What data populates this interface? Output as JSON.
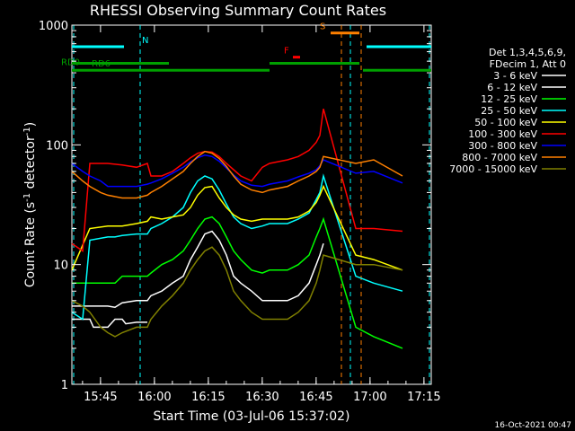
{
  "chart_data": {
    "type": "line",
    "title": "RHESSI Observing Summary Count Rates",
    "xlabel": "Start Time (03-Jul-06 15:37:02)",
    "ylabel_main": "Count Rate (s",
    "ylabel_sup1": "-1",
    "ylabel_mid": " detector",
    "ylabel_sup2": "-1",
    "ylabel_end": ")",
    "yscale": "log",
    "ylim": [
      1,
      1000
    ],
    "xlim_minutes": [
      0,
      100
    ],
    "x_unit": "minutes since 15:37:02",
    "x_ticks": [
      {
        "label": "15:45",
        "t": 7.97
      },
      {
        "label": "16:00",
        "t": 22.97
      },
      {
        "label": "16:15",
        "t": 37.97
      },
      {
        "label": "16:30",
        "t": 52.97
      },
      {
        "label": "16:45",
        "t": 67.97
      },
      {
        "label": "17:00",
        "t": 82.97
      },
      {
        "label": "17:15",
        "t": 97.97
      }
    ],
    "y_ticks": [
      {
        "label": "1",
        "v": 1
      },
      {
        "label": "10",
        "v": 10
      },
      {
        "label": "100",
        "v": 100
      },
      {
        "label": "1000",
        "v": 1000
      }
    ],
    "legend_header": [
      "Det 1,3,4,5,6,9,",
      "FDecim 1, Att 0"
    ],
    "series": [
      {
        "name": "3 - 6 keV",
        "color": "#ffffff",
        "values": [
          [
            0,
            4.5
          ],
          [
            5,
            4.5
          ],
          [
            10,
            4.5
          ],
          [
            12,
            4.4
          ],
          [
            14,
            4.8
          ],
          [
            18,
            5
          ],
          [
            21,
            5
          ],
          [
            22,
            5.5
          ],
          [
            25,
            6
          ],
          [
            28,
            7
          ],
          [
            31,
            8
          ],
          [
            33,
            11
          ],
          [
            35,
            14
          ],
          [
            37,
            18
          ],
          [
            39,
            19
          ],
          [
            41,
            16
          ],
          [
            43,
            12
          ],
          [
            45,
            8
          ],
          [
            47,
            7
          ],
          [
            50,
            6
          ],
          [
            53,
            5
          ],
          [
            55,
            5
          ],
          [
            60,
            5
          ],
          [
            63,
            5.5
          ],
          [
            66,
            7
          ],
          [
            68,
            10
          ],
          [
            69,
            12
          ],
          [
            70,
            15
          ]
        ]
      },
      {
        "name": "6 - 12 keV",
        "color": "#ffffff",
        "values": [
          [
            0,
            3.5
          ],
          [
            3,
            3.5
          ],
          [
            5,
            3.5
          ],
          [
            6,
            3
          ],
          [
            10,
            3
          ],
          [
            12,
            3.5
          ],
          [
            14,
            3.5
          ],
          [
            15,
            3.2
          ],
          [
            18,
            3.3
          ],
          [
            21,
            3.3
          ]
        ]
      },
      {
        "name": "12 - 25 keV",
        "color": "#00ff00",
        "values": [
          [
            0,
            7
          ],
          [
            5,
            7
          ],
          [
            10,
            7
          ],
          [
            12,
            7
          ],
          [
            14,
            8
          ],
          [
            18,
            8
          ],
          [
            21,
            8
          ],
          [
            22,
            8.5
          ],
          [
            25,
            10
          ],
          [
            28,
            11
          ],
          [
            31,
            13
          ],
          [
            33,
            16
          ],
          [
            35,
            20
          ],
          [
            37,
            24
          ],
          [
            39,
            25
          ],
          [
            41,
            22
          ],
          [
            43,
            17
          ],
          [
            45,
            13
          ],
          [
            47,
            11
          ],
          [
            50,
            9
          ],
          [
            53,
            8.5
          ],
          [
            55,
            9
          ],
          [
            60,
            9
          ],
          [
            63,
            10
          ],
          [
            66,
            12
          ],
          [
            68,
            17
          ],
          [
            69,
            20
          ],
          [
            70,
            24
          ],
          [
            79,
            3
          ],
          [
            84,
            2.5
          ],
          [
            92,
            2
          ]
        ]
      },
      {
        "name": "25 - 50 keV",
        "color": "#00ffff",
        "values": [
          [
            0,
            4
          ],
          [
            3,
            3.5
          ],
          [
            5,
            16
          ],
          [
            10,
            17
          ],
          [
            12,
            17
          ],
          [
            14,
            17.5
          ],
          [
            18,
            18
          ],
          [
            21,
            18
          ],
          [
            22,
            20
          ],
          [
            25,
            22
          ],
          [
            28,
            25
          ],
          [
            31,
            30
          ],
          [
            33,
            40
          ],
          [
            35,
            50
          ],
          [
            37,
            55
          ],
          [
            39,
            52
          ],
          [
            41,
            42
          ],
          [
            43,
            32
          ],
          [
            45,
            25
          ],
          [
            47,
            22
          ],
          [
            50,
            20
          ],
          [
            53,
            21
          ],
          [
            55,
            22
          ],
          [
            60,
            22
          ],
          [
            63,
            24
          ],
          [
            66,
            27
          ],
          [
            68,
            35
          ],
          [
            69,
            40
          ],
          [
            70,
            55
          ],
          [
            79,
            8
          ],
          [
            84,
            7
          ],
          [
            92,
            6
          ]
        ]
      },
      {
        "name": "50 - 100 keV",
        "color": "#ffff00",
        "values": [
          [
            0,
            9
          ],
          [
            5,
            20
          ],
          [
            10,
            21
          ],
          [
            14,
            21
          ],
          [
            18,
            22
          ],
          [
            21,
            23
          ],
          [
            22,
            25
          ],
          [
            25,
            24
          ],
          [
            28,
            25
          ],
          [
            31,
            26
          ],
          [
            33,
            30
          ],
          [
            35,
            38
          ],
          [
            37,
            44
          ],
          [
            39,
            45
          ],
          [
            41,
            36
          ],
          [
            43,
            30
          ],
          [
            45,
            26
          ],
          [
            47,
            24
          ],
          [
            50,
            23
          ],
          [
            53,
            24
          ],
          [
            55,
            24
          ],
          [
            60,
            24
          ],
          [
            63,
            25
          ],
          [
            66,
            28
          ],
          [
            68,
            33
          ],
          [
            69,
            38
          ],
          [
            70,
            45
          ],
          [
            79,
            12
          ],
          [
            84,
            11
          ],
          [
            92,
            9
          ]
        ]
      },
      {
        "name": "100 - 300 keV",
        "color": "#ff0000",
        "values": [
          [
            0,
            15
          ],
          [
            3,
            13
          ],
          [
            5,
            70
          ],
          [
            10,
            70
          ],
          [
            14,
            68
          ],
          [
            18,
            65
          ],
          [
            21,
            70
          ],
          [
            22,
            55
          ],
          [
            25,
            55
          ],
          [
            28,
            60
          ],
          [
            31,
            70
          ],
          [
            33,
            78
          ],
          [
            35,
            85
          ],
          [
            37,
            88
          ],
          [
            39,
            87
          ],
          [
            41,
            80
          ],
          [
            43,
            70
          ],
          [
            45,
            62
          ],
          [
            47,
            55
          ],
          [
            50,
            50
          ],
          [
            53,
            65
          ],
          [
            55,
            70
          ],
          [
            60,
            75
          ],
          [
            63,
            80
          ],
          [
            66,
            90
          ],
          [
            68,
            105
          ],
          [
            69,
            120
          ],
          [
            70,
            200
          ],
          [
            79,
            20
          ],
          [
            84,
            20
          ],
          [
            92,
            19
          ]
        ]
      },
      {
        "name": "300 - 800 keV",
        "color": "#0000ff",
        "values": [
          [
            0,
            70
          ],
          [
            3,
            60
          ],
          [
            5,
            55
          ],
          [
            8,
            50
          ],
          [
            10,
            45
          ],
          [
            14,
            45
          ],
          [
            18,
            45
          ],
          [
            21,
            47
          ],
          [
            22,
            48
          ],
          [
            25,
            52
          ],
          [
            28,
            58
          ],
          [
            31,
            65
          ],
          [
            33,
            72
          ],
          [
            35,
            78
          ],
          [
            37,
            82
          ],
          [
            39,
            80
          ],
          [
            41,
            73
          ],
          [
            43,
            64
          ],
          [
            45,
            56
          ],
          [
            47,
            50
          ],
          [
            50,
            46
          ],
          [
            53,
            45
          ],
          [
            55,
            47
          ],
          [
            60,
            50
          ],
          [
            63,
            54
          ],
          [
            66,
            58
          ],
          [
            68,
            62
          ],
          [
            69,
            67
          ],
          [
            70,
            75
          ],
          [
            79,
            58
          ],
          [
            84,
            60
          ],
          [
            92,
            48
          ]
        ]
      },
      {
        "name": "800 - 7000 keV",
        "color": "#ff8000",
        "values": [
          [
            0,
            60
          ],
          [
            3,
            50
          ],
          [
            5,
            45
          ],
          [
            8,
            40
          ],
          [
            10,
            38
          ],
          [
            14,
            36
          ],
          [
            18,
            36
          ],
          [
            21,
            38
          ],
          [
            22,
            40
          ],
          [
            25,
            45
          ],
          [
            28,
            52
          ],
          [
            31,
            60
          ],
          [
            33,
            70
          ],
          [
            35,
            80
          ],
          [
            37,
            88
          ],
          [
            39,
            85
          ],
          [
            41,
            77
          ],
          [
            43,
            66
          ],
          [
            45,
            55
          ],
          [
            47,
            47
          ],
          [
            50,
            42
          ],
          [
            53,
            40
          ],
          [
            55,
            42
          ],
          [
            60,
            45
          ],
          [
            63,
            50
          ],
          [
            66,
            55
          ],
          [
            68,
            60
          ],
          [
            69,
            65
          ],
          [
            70,
            80
          ],
          [
            79,
            70
          ],
          [
            84,
            75
          ],
          [
            92,
            55
          ]
        ]
      },
      {
        "name": "7000 - 15000 keV",
        "color": "#808000",
        "values": [
          [
            0,
            5
          ],
          [
            3,
            4.5
          ],
          [
            5,
            4
          ],
          [
            8,
            3
          ],
          [
            10,
            2.7
          ],
          [
            12,
            2.5
          ],
          [
            14,
            2.7
          ],
          [
            18,
            3
          ],
          [
            21,
            3
          ],
          [
            22,
            3.5
          ],
          [
            25,
            4.5
          ],
          [
            28,
            5.5
          ],
          [
            31,
            7
          ],
          [
            33,
            9
          ],
          [
            35,
            11
          ],
          [
            37,
            13
          ],
          [
            39,
            14
          ],
          [
            41,
            12
          ],
          [
            43,
            9
          ],
          [
            45,
            6
          ],
          [
            47,
            5
          ],
          [
            50,
            4
          ],
          [
            53,
            3.5
          ],
          [
            55,
            3.5
          ],
          [
            60,
            3.5
          ],
          [
            63,
            4
          ],
          [
            66,
            5
          ],
          [
            68,
            7
          ],
          [
            69,
            9
          ],
          [
            70,
            12
          ],
          [
            79,
            10
          ],
          [
            84,
            10
          ],
          [
            92,
            9
          ]
        ]
      }
    ],
    "flags": [
      {
        "label": "N",
        "color": "#00ffff",
        "segments": [
          [
            0,
            14.5
          ],
          [
            82,
            100
          ]
        ],
        "level": 660
      },
      {
        "label": "S",
        "color": "#ff8000",
        "segments": [
          [
            72,
            80
          ]
        ],
        "level": 860
      },
      {
        "label": "F",
        "color": "#ff0000",
        "segments": [
          [
            61.5,
            63.5
          ]
        ],
        "level": 540
      },
      {
        "label": "RD0",
        "color": "#00a000",
        "segments": [
          [
            0,
            27
          ],
          [
            55,
            80
          ]
        ],
        "level": 480
      },
      {
        "label": "RD6",
        "color": "#00a000",
        "segments": [
          [
            0,
            55
          ],
          [
            81,
            100
          ]
        ],
        "level": 420
      }
    ],
    "gaps": [
      {
        "color": "#00ffff",
        "t": 0.5
      },
      {
        "color": "#00ffff",
        "t": 19
      },
      {
        "color": "#ff8000",
        "t": 75
      },
      {
        "color": "#00ffff",
        "t": 77.5
      },
      {
        "color": "#ff8000",
        "t": 80.5
      },
      {
        "color": "#00ffff",
        "t": 99.5
      }
    ],
    "timestamp": "16-Oct-2021 00:47"
  }
}
